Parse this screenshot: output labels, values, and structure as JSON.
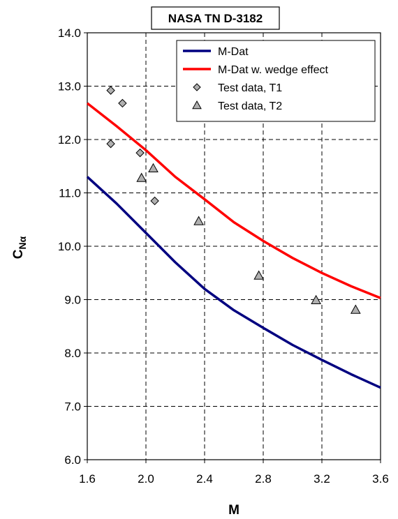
{
  "chart_data": {
    "type": "line",
    "title": "NASA TN D-3182",
    "xlabel": "M",
    "ylabel": {
      "main": "C",
      "sub": "Nα"
    },
    "xlim": [
      1.6,
      3.6
    ],
    "ylim": [
      6.0,
      14.0
    ],
    "x_ticks": [
      "1.6",
      "2.0",
      "2.4",
      "2.8",
      "3.2",
      "3.6"
    ],
    "y_ticks": [
      "6.0",
      "7.0",
      "8.0",
      "9.0",
      "10.0",
      "11.0",
      "12.0",
      "13.0",
      "14.0"
    ],
    "grid": true,
    "legend_position": "top-right",
    "series": [
      {
        "name": "M-Dat",
        "kind": "line",
        "color": "#000080",
        "x": [
          1.6,
          1.8,
          2.0,
          2.2,
          2.4,
          2.6,
          2.8,
          3.0,
          3.2,
          3.4,
          3.6
        ],
        "y": [
          11.3,
          10.8,
          10.25,
          9.7,
          9.2,
          8.8,
          8.47,
          8.15,
          7.87,
          7.6,
          7.35
        ]
      },
      {
        "name": "M-Dat w. wedge effect",
        "kind": "line",
        "color": "#ff0000",
        "x": [
          1.6,
          1.8,
          2.0,
          2.2,
          2.4,
          2.6,
          2.8,
          3.0,
          3.2,
          3.4,
          3.6
        ],
        "y": [
          12.68,
          12.25,
          11.8,
          11.3,
          10.88,
          10.45,
          10.1,
          9.78,
          9.5,
          9.25,
          9.03
        ]
      },
      {
        "name": "Test data, T1",
        "kind": "scatter",
        "marker": "diamond",
        "color": "#b0b0b0",
        "x": [
          1.76,
          1.84,
          1.76,
          1.96,
          2.06
        ],
        "y": [
          12.92,
          12.68,
          11.92,
          11.75,
          10.85
        ]
      },
      {
        "name": "Test data, T2",
        "kind": "scatter",
        "marker": "triangle",
        "color": "#b0b0b0",
        "x": [
          1.97,
          2.05,
          2.36,
          2.77,
          3.16,
          3.43
        ],
        "y": [
          11.28,
          11.46,
          10.47,
          9.45,
          8.99,
          8.81
        ]
      }
    ]
  }
}
